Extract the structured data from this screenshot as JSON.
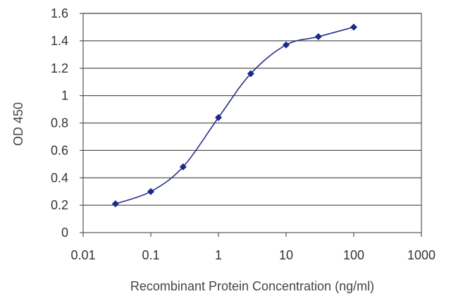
{
  "chart_data": {
    "type": "line",
    "xlabel": "Recombinant Protein Concentration (ng/ml)",
    "ylabel": "OD 450",
    "x_scale": "log",
    "xlim": [
      0.01,
      1000
    ],
    "ylim": [
      0,
      1.6
    ],
    "x_ticks": [
      "0.01",
      "0.1",
      "1",
      "10",
      "100",
      "1000"
    ],
    "y_ticks": [
      "0",
      "0.2",
      "0.4",
      "0.6",
      "0.8",
      "1",
      "1.2",
      "1.4",
      "1.6"
    ],
    "grid": "horizontal",
    "series": [
      {
        "x": [
          0.03,
          0.1,
          0.3,
          1,
          3,
          10,
          30,
          100
        ],
        "y": [
          0.21,
          0.3,
          0.48,
          0.84,
          1.16,
          1.37,
          1.43,
          1.5
        ]
      }
    ],
    "colors": {
      "line": "#2a2f8f",
      "marker": "#1a2a8a",
      "grid": "#555555"
    }
  }
}
